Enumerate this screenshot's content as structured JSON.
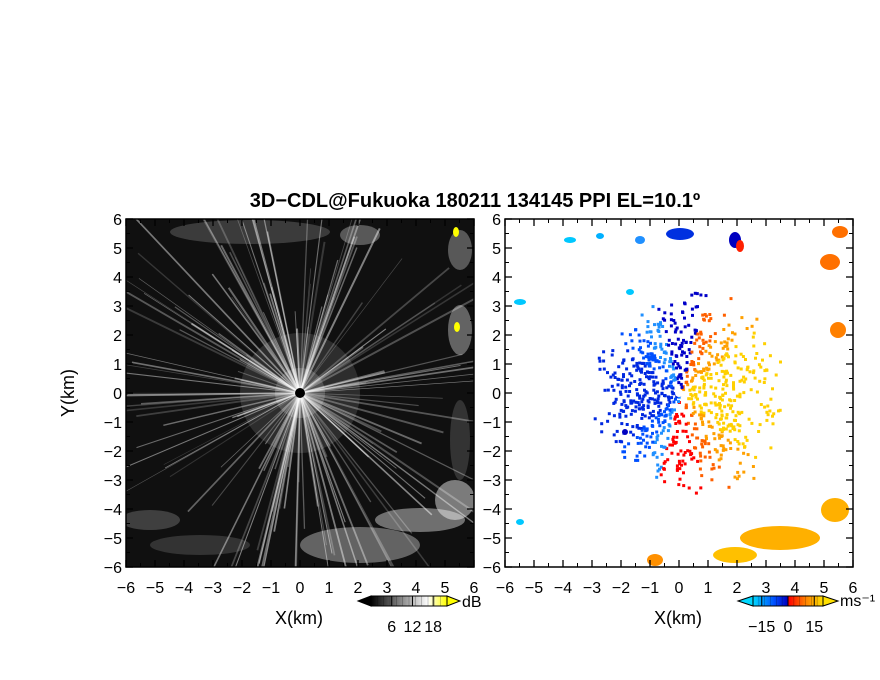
{
  "chart_data": [
    {
      "type": "heatmap",
      "title": "3D−CDL@Fukuoka 180211 134145 PPI EL=10.1º",
      "panel": "reflectivity",
      "xlabel": "X(km)",
      "ylabel": "Y(km)",
      "xlim": [
        -6,
        6
      ],
      "ylim": [
        -6,
        6
      ],
      "x_ticks": [
        "−6",
        "−5",
        "−4",
        "−3",
        "−2",
        "−1",
        "0",
        "1",
        "2",
        "3",
        "4",
        "5",
        "6"
      ],
      "y_ticks": [
        "6",
        "5",
        "4",
        "3",
        "2",
        "1",
        "0",
        "−1",
        "−2",
        "−3",
        "−4",
        "−5",
        "−6"
      ],
      "colorbar": {
        "unit": "dB",
        "tick_labels": [
          "6",
          "12",
          "18"
        ],
        "ticks": [
          6,
          12,
          18
        ],
        "range": [
          0,
          22
        ],
        "colormap": [
          "#000000",
          "#ffffff",
          "#ffff00"
        ]
      },
      "background_color": "#101010"
    },
    {
      "type": "heatmap",
      "panel": "doppler velocity",
      "xlabel": "X(km)",
      "xlim": [
        -6,
        6
      ],
      "ylim": [
        -6,
        6
      ],
      "x_ticks": [
        "−6",
        "−5",
        "−4",
        "−3",
        "−2",
        "−1",
        "0",
        "1",
        "2",
        "3",
        "4",
        "5",
        "6"
      ],
      "y_ticks": [
        "6",
        "5",
        "4",
        "3",
        "2",
        "1",
        "0",
        "−1",
        "−2",
        "−3",
        "−4",
        "−5",
        "−6"
      ],
      "colorbar": {
        "unit": "ms⁻¹",
        "tick_labels": [
          "−15",
          "0",
          "15"
        ],
        "ticks": [
          -15,
          0,
          15
        ],
        "range": [
          -20,
          20
        ],
        "colormap": [
          "#00d8ff",
          "#0050ff",
          "#0000c0",
          "#ff0000",
          "#ff8000",
          "#ffe000"
        ]
      },
      "background_color": "#ffffff"
    }
  ]
}
